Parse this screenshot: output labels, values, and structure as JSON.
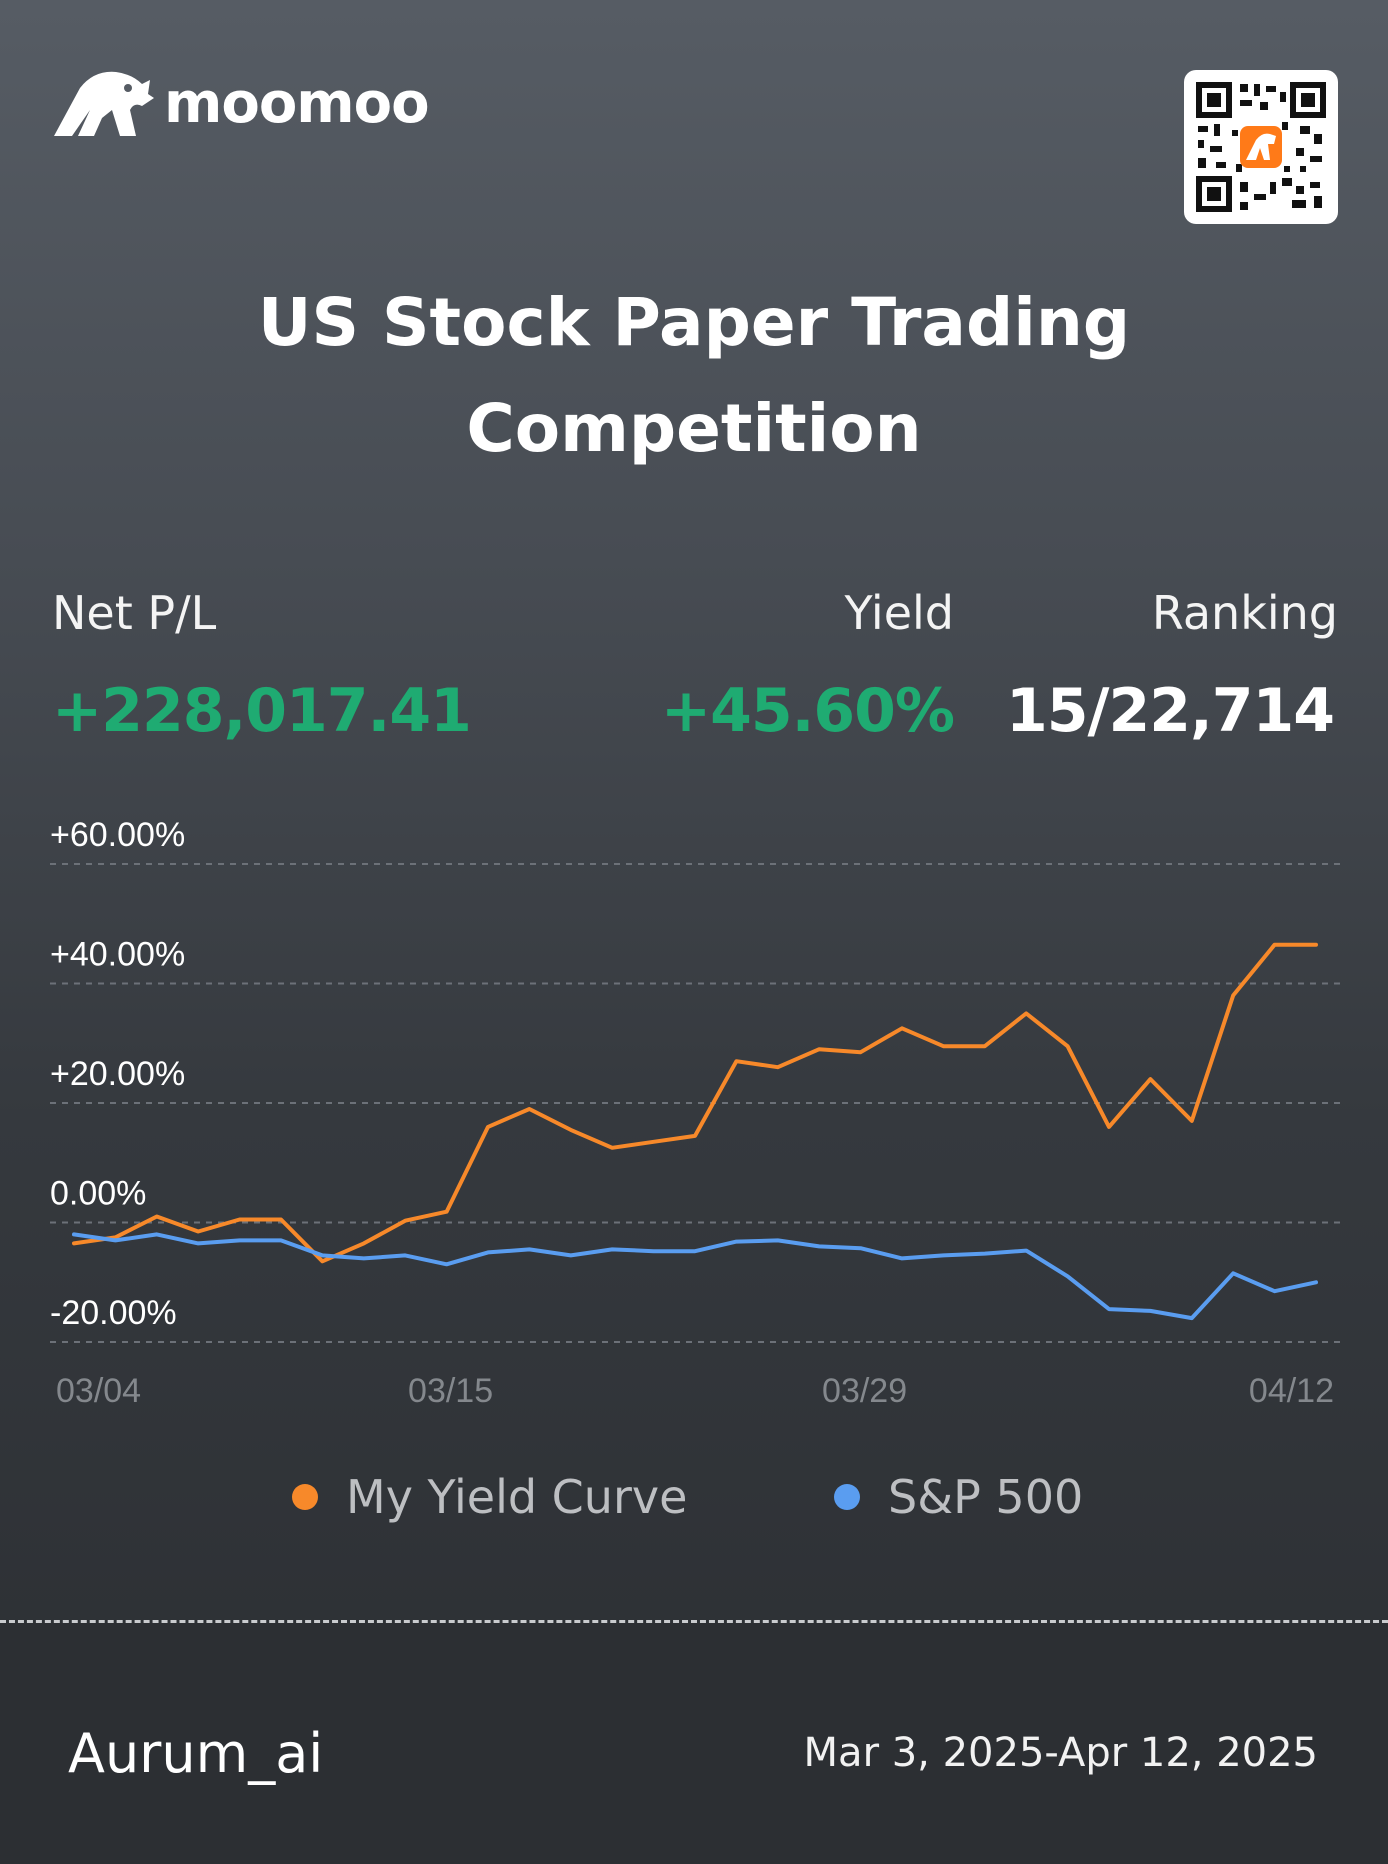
{
  "brand": {
    "name": "moomoo",
    "accent": "#ff7a18"
  },
  "qr": {
    "icon": "qr-code-icon"
  },
  "header": {
    "title_line1": "US Stock Paper Trading",
    "title_line2": "Competition"
  },
  "stats": {
    "net_pl_label": "Net P/L",
    "net_pl_value": "+228,017.41",
    "yield_label": "Yield",
    "yield_value": "+45.60%",
    "ranking_label": "Ranking",
    "ranking_value": "15/22,714",
    "positive_color": "#1fab72"
  },
  "chart_data": {
    "type": "line",
    "ylim": [
      -20,
      60
    ],
    "yticks": [
      "+60.00%",
      "+40.00%",
      "+20.00%",
      "0.00%",
      "-20.00%"
    ],
    "ytick_values": [
      60,
      40,
      20,
      0,
      -20
    ],
    "xtick_labels": [
      "03/04",
      "03/15",
      "03/29",
      "04/12"
    ],
    "xtick_positions": [
      0,
      9,
      19,
      29
    ],
    "grid": true,
    "legend_position": "bottom",
    "series": [
      {
        "name": "My Yield Curve",
        "color": "#f7892a",
        "values": [
          -3.5,
          -2.5,
          1.0,
          -1.5,
          0.5,
          0.5,
          -6.5,
          -3.5,
          0.3,
          1.8,
          16.0,
          19.0,
          15.5,
          12.5,
          13.5,
          14.5,
          27.0,
          26.0,
          29.0,
          28.5,
          32.5,
          29.5,
          29.5,
          35.0,
          29.5,
          16.0,
          24.0,
          17.0,
          38.0,
          46.5,
          46.5
        ]
      },
      {
        "name": "S&P 500",
        "color": "#5a9df0",
        "values": [
          -2.0,
          -3.0,
          -2.0,
          -3.5,
          -3.0,
          -3.0,
          -5.5,
          -6.0,
          -5.5,
          -7.0,
          -5.0,
          -4.5,
          -5.5,
          -4.5,
          -4.8,
          -4.8,
          -3.2,
          -3.0,
          -4.0,
          -4.3,
          -6.0,
          -5.5,
          -5.2,
          -4.7,
          -9.0,
          -14.5,
          -14.8,
          -16.0,
          -8.5,
          -11.5,
          -10.0
        ]
      }
    ]
  },
  "footer": {
    "username": "Aurum_ai",
    "date_range": "Mar 3, 2025-Apr 12, 2025"
  }
}
